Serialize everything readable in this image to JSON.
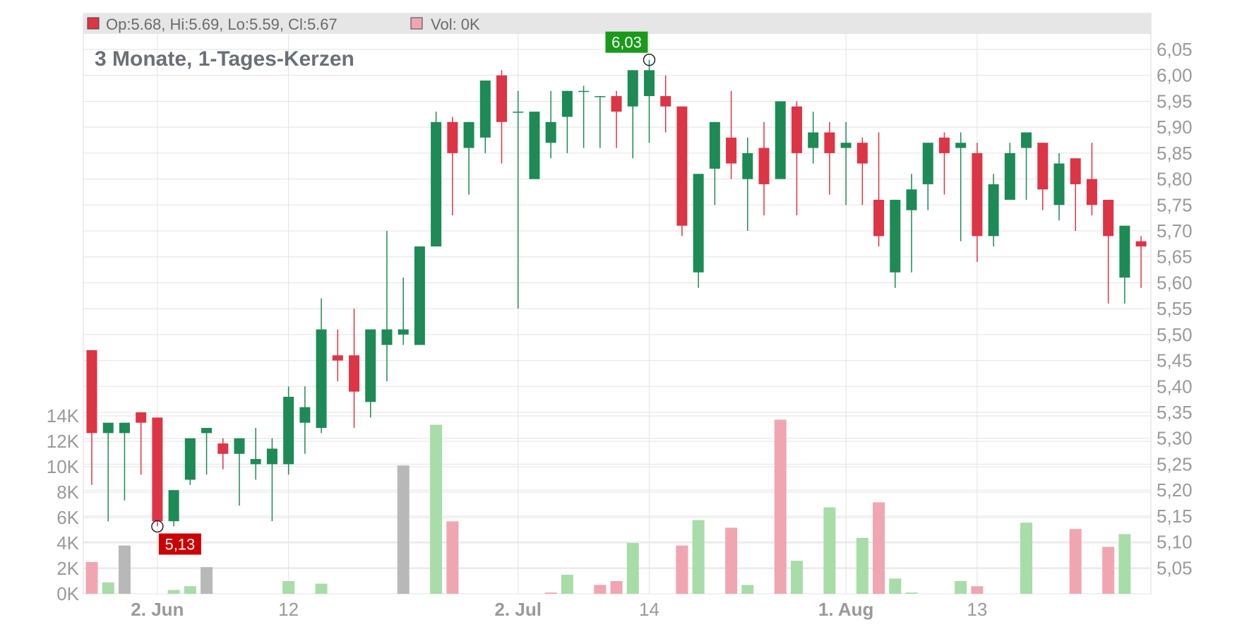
{
  "chart_data": {
    "type": "candlestick",
    "title": "3 Monate, 1-Tages-Kerzen",
    "legend": {
      "ohlc_label": "Op:5.68, Hi:5.69, Lo:5.59, Cl:5.67",
      "volume_label": "Vol: 0K"
    },
    "price_axis": {
      "position": "right",
      "ylim": [
        5.0,
        6.08
      ],
      "ticks": [
        5.05,
        5.1,
        5.15,
        5.2,
        5.25,
        5.3,
        5.35,
        5.4,
        5.45,
        5.5,
        5.55,
        5.6,
        5.65,
        5.7,
        5.75,
        5.8,
        5.85,
        5.9,
        5.95,
        6.0,
        6.05
      ],
      "tick_labels": [
        "5,05",
        "5,10",
        "5,15",
        "5,20",
        "5,25",
        "5,30",
        "5,35",
        "5,40",
        "5,45",
        "5,50",
        "5,55",
        "5,60",
        "5,65",
        "5,70",
        "5,75",
        "5,80",
        "5,85",
        "5,90",
        "5,95",
        "6,00",
        "6,05"
      ]
    },
    "volume_axis": {
      "position": "left",
      "ylim": [
        0,
        14000
      ],
      "ticks": [
        0,
        2000,
        4000,
        6000,
        8000,
        10000,
        12000,
        14000
      ],
      "tick_labels": [
        "0K",
        "2K",
        "4K",
        "6K",
        "8K",
        "10K",
        "12K",
        "14K"
      ]
    },
    "x_axis": {
      "ticks": [
        {
          "label": "2. Jun",
          "index": 4,
          "bold": true
        },
        {
          "label": "12",
          "index": 12,
          "bold": false
        },
        {
          "label": "2. Jul",
          "index": 26,
          "bold": true
        },
        {
          "label": "14",
          "index": 34,
          "bold": false
        },
        {
          "label": "1. Aug",
          "index": 46,
          "bold": true
        },
        {
          "label": "13",
          "index": 54,
          "bold": false
        }
      ]
    },
    "colors": {
      "up": "#1e8a55",
      "down": "#dc3545",
      "volume_up": "#a8dca8",
      "volume_down": "#f0a6b0",
      "volume_neutral": "#b8b8b8",
      "grid": "#e3e3e3",
      "legend_bg": "#e6e6e6",
      "max_marker": "#1a9a1a",
      "min_marker": "#cc0000"
    },
    "annotations": {
      "max": {
        "label": "6,03",
        "index": 34,
        "value": 6.03
      },
      "min": {
        "label": "5,13",
        "index": 4,
        "value": 5.13
      }
    },
    "candles": [
      {
        "o": 5.47,
        "h": 5.47,
        "l": 5.21,
        "c": 5.31,
        "v": 2500,
        "vd": "down"
      },
      {
        "o": 5.31,
        "h": 5.33,
        "l": 5.14,
        "c": 5.33,
        "v": 900,
        "vd": "up"
      },
      {
        "o": 5.31,
        "h": 5.33,
        "l": 5.18,
        "c": 5.33,
        "v": 3800,
        "vd": "neutral"
      },
      {
        "o": 5.35,
        "h": 5.35,
        "l": 5.23,
        "c": 5.33,
        "v": 0,
        "vd": "down"
      },
      {
        "o": 5.34,
        "h": 5.34,
        "l": 5.13,
        "c": 5.14,
        "v": 0,
        "vd": "down"
      },
      {
        "o": 5.14,
        "h": 5.2,
        "l": 5.13,
        "c": 5.2,
        "v": 300,
        "vd": "up"
      },
      {
        "o": 5.22,
        "h": 5.3,
        "l": 5.21,
        "c": 5.3,
        "v": 600,
        "vd": "up"
      },
      {
        "o": 5.31,
        "h": 5.32,
        "l": 5.23,
        "c": 5.32,
        "v": 2100,
        "vd": "neutral"
      },
      {
        "o": 5.29,
        "h": 5.3,
        "l": 5.24,
        "c": 5.27,
        "v": 0,
        "vd": "down"
      },
      {
        "o": 5.27,
        "h": 5.3,
        "l": 5.17,
        "c": 5.3,
        "v": 0,
        "vd": "up"
      },
      {
        "o": 5.25,
        "h": 5.32,
        "l": 5.22,
        "c": 5.26,
        "v": 0,
        "vd": "up"
      },
      {
        "o": 5.25,
        "h": 5.3,
        "l": 5.14,
        "c": 5.28,
        "v": 0,
        "vd": "up"
      },
      {
        "o": 5.25,
        "h": 5.4,
        "l": 5.23,
        "c": 5.38,
        "v": 1000,
        "vd": "up"
      },
      {
        "o": 5.33,
        "h": 5.4,
        "l": 5.27,
        "c": 5.36,
        "v": 0,
        "vd": "up"
      },
      {
        "o": 5.32,
        "h": 5.57,
        "l": 5.31,
        "c": 5.51,
        "v": 800,
        "vd": "up"
      },
      {
        "o": 5.46,
        "h": 5.51,
        "l": 5.41,
        "c": 5.45,
        "v": 0,
        "vd": "down"
      },
      {
        "o": 5.46,
        "h": 5.55,
        "l": 5.32,
        "c": 5.39,
        "v": 0,
        "vd": "down"
      },
      {
        "o": 5.37,
        "h": 5.51,
        "l": 5.34,
        "c": 5.51,
        "v": 0,
        "vd": "up"
      },
      {
        "o": 5.48,
        "h": 5.7,
        "l": 5.41,
        "c": 5.51,
        "v": 0,
        "vd": "up"
      },
      {
        "o": 5.5,
        "h": 5.61,
        "l": 5.48,
        "c": 5.51,
        "v": 10100,
        "vd": "neutral"
      },
      {
        "o": 5.48,
        "h": 5.67,
        "l": 5.48,
        "c": 5.67,
        "v": 0,
        "vd": "up"
      },
      {
        "o": 5.67,
        "h": 5.93,
        "l": 5.67,
        "c": 5.91,
        "v": 13300,
        "vd": "up"
      },
      {
        "o": 5.91,
        "h": 5.92,
        "l": 5.73,
        "c": 5.85,
        "v": 5700,
        "vd": "down"
      },
      {
        "o": 5.86,
        "h": 5.91,
        "l": 5.77,
        "c": 5.91,
        "v": 0,
        "vd": "up"
      },
      {
        "o": 5.88,
        "h": 5.99,
        "l": 5.85,
        "c": 5.99,
        "v": 0,
        "vd": "up"
      },
      {
        "o": 6.0,
        "h": 6.01,
        "l": 5.83,
        "c": 5.91,
        "v": 0,
        "vd": "down"
      },
      {
        "o": 5.93,
        "h": 5.97,
        "l": 5.55,
        "c": 5.93,
        "v": 0,
        "vd": "up"
      },
      {
        "o": 5.8,
        "h": 5.93,
        "l": 5.8,
        "c": 5.93,
        "v": 0,
        "vd": "up"
      },
      {
        "o": 5.87,
        "h": 5.97,
        "l": 5.84,
        "c": 5.91,
        "v": 100,
        "vd": "down"
      },
      {
        "o": 5.92,
        "h": 5.97,
        "l": 5.85,
        "c": 5.97,
        "v": 1500,
        "vd": "up"
      },
      {
        "o": 5.97,
        "h": 5.98,
        "l": 5.86,
        "c": 5.97,
        "v": 0,
        "vd": "up"
      },
      {
        "o": 5.96,
        "h": 5.96,
        "l": 5.86,
        "c": 5.96,
        "v": 700,
        "vd": "down"
      },
      {
        "o": 5.96,
        "h": 5.97,
        "l": 5.86,
        "c": 5.93,
        "v": 1000,
        "vd": "down"
      },
      {
        "o": 5.94,
        "h": 6.01,
        "l": 5.84,
        "c": 6.01,
        "v": 4000,
        "vd": "up"
      },
      {
        "o": 5.96,
        "h": 6.03,
        "l": 5.87,
        "c": 6.01,
        "v": 0,
        "vd": "up"
      },
      {
        "o": 5.96,
        "h": 6.0,
        "l": 5.89,
        "c": 5.94,
        "v": 0,
        "vd": "down"
      },
      {
        "o": 5.94,
        "h": 5.94,
        "l": 5.69,
        "c": 5.71,
        "v": 3800,
        "vd": "down"
      },
      {
        "o": 5.62,
        "h": 5.81,
        "l": 5.59,
        "c": 5.81,
        "v": 5800,
        "vd": "up"
      },
      {
        "o": 5.82,
        "h": 5.91,
        "l": 5.75,
        "c": 5.91,
        "v": 0,
        "vd": "up"
      },
      {
        "o": 5.88,
        "h": 5.97,
        "l": 5.8,
        "c": 5.83,
        "v": 5200,
        "vd": "down"
      },
      {
        "o": 5.8,
        "h": 5.88,
        "l": 5.7,
        "c": 5.85,
        "v": 700,
        "vd": "up"
      },
      {
        "o": 5.86,
        "h": 5.91,
        "l": 5.73,
        "c": 5.79,
        "v": 0,
        "vd": "down"
      },
      {
        "o": 5.8,
        "h": 5.95,
        "l": 5.8,
        "c": 5.95,
        "v": 13700,
        "vd": "down"
      },
      {
        "o": 5.94,
        "h": 5.95,
        "l": 5.73,
        "c": 5.85,
        "v": 2600,
        "vd": "up"
      },
      {
        "o": 5.86,
        "h": 5.93,
        "l": 5.83,
        "c": 5.89,
        "v": 0,
        "vd": "up"
      },
      {
        "o": 5.89,
        "h": 5.91,
        "l": 5.77,
        "c": 5.85,
        "v": 6800,
        "vd": "up"
      },
      {
        "o": 5.86,
        "h": 5.91,
        "l": 5.75,
        "c": 5.87,
        "v": 0,
        "vd": "up"
      },
      {
        "o": 5.87,
        "h": 5.88,
        "l": 5.75,
        "c": 5.83,
        "v": 4400,
        "vd": "up"
      },
      {
        "o": 5.76,
        "h": 5.89,
        "l": 5.67,
        "c": 5.69,
        "v": 7200,
        "vd": "down"
      },
      {
        "o": 5.62,
        "h": 5.76,
        "l": 5.59,
        "c": 5.76,
        "v": 1200,
        "vd": "up"
      },
      {
        "o": 5.74,
        "h": 5.81,
        "l": 5.62,
        "c": 5.78,
        "v": 100,
        "vd": "up"
      },
      {
        "o": 5.79,
        "h": 5.87,
        "l": 5.74,
        "c": 5.87,
        "v": 0,
        "vd": "up"
      },
      {
        "o": 5.88,
        "h": 5.89,
        "l": 5.77,
        "c": 5.85,
        "v": 0,
        "vd": "down"
      },
      {
        "o": 5.86,
        "h": 5.89,
        "l": 5.68,
        "c": 5.87,
        "v": 1000,
        "vd": "up"
      },
      {
        "o": 5.85,
        "h": 5.87,
        "l": 5.64,
        "c": 5.69,
        "v": 600,
        "vd": "down"
      },
      {
        "o": 5.69,
        "h": 5.81,
        "l": 5.67,
        "c": 5.79,
        "v": 0,
        "vd": "up"
      },
      {
        "o": 5.76,
        "h": 5.87,
        "l": 5.76,
        "c": 5.85,
        "v": 0,
        "vd": "up"
      },
      {
        "o": 5.86,
        "h": 5.89,
        "l": 5.76,
        "c": 5.89,
        "v": 5600,
        "vd": "up"
      },
      {
        "o": 5.87,
        "h": 5.87,
        "l": 5.74,
        "c": 5.78,
        "v": 0,
        "vd": "down"
      },
      {
        "o": 5.75,
        "h": 5.85,
        "l": 5.72,
        "c": 5.83,
        "v": 0,
        "vd": "up"
      },
      {
        "o": 5.84,
        "h": 5.84,
        "l": 5.7,
        "c": 5.79,
        "v": 5100,
        "vd": "down"
      },
      {
        "o": 5.8,
        "h": 5.87,
        "l": 5.73,
        "c": 5.75,
        "v": 0,
        "vd": "down"
      },
      {
        "o": 5.76,
        "h": 5.76,
        "l": 5.56,
        "c": 5.69,
        "v": 3700,
        "vd": "down"
      },
      {
        "o": 5.61,
        "h": 5.71,
        "l": 5.56,
        "c": 5.71,
        "v": 4700,
        "vd": "up"
      },
      {
        "o": 5.68,
        "h": 5.69,
        "l": 5.59,
        "c": 5.67,
        "v": 0,
        "vd": "down"
      }
    ]
  }
}
